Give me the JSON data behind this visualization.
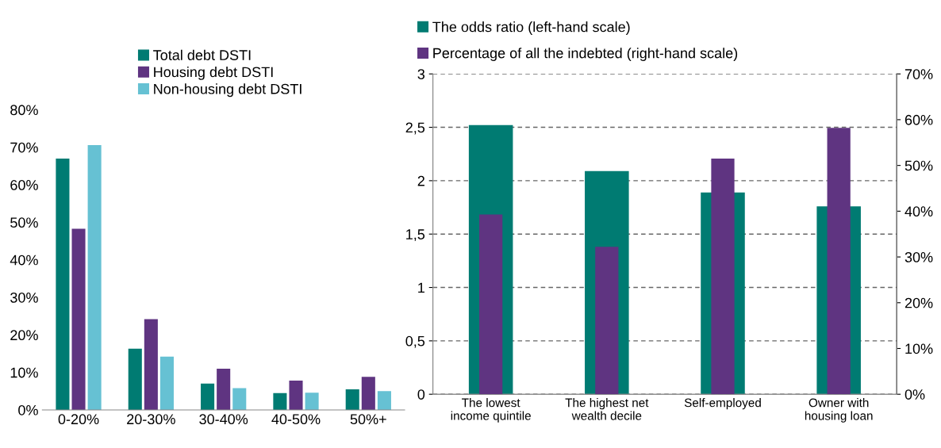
{
  "chart_data": [
    {
      "type": "bar",
      "categories": [
        "0-20%",
        "20-30%",
        "30-40%",
        "40-50%",
        "50%+"
      ],
      "series": [
        {
          "name": "Total debt DSTI",
          "color": "#007b72",
          "values": [
            67,
            16.3,
            7,
            4.5,
            5.5
          ]
        },
        {
          "name": "Housing debt DSTI",
          "color": "#5f3481",
          "values": [
            48.3,
            24.2,
            11,
            7.8,
            8.8
          ]
        },
        {
          "name": "Non-housing debt DSTI",
          "color": "#66c1d3",
          "values": [
            70.6,
            14.2,
            5.8,
            4.6,
            5
          ]
        }
      ],
      "ylim": [
        0,
        80
      ],
      "yticks": [
        {
          "value": 0,
          "label": "0%"
        },
        {
          "value": 10,
          "label": "10%"
        },
        {
          "value": 20,
          "label": "20%"
        },
        {
          "value": 30,
          "label": "30%"
        },
        {
          "value": 40,
          "label": "40%"
        },
        {
          "value": 50,
          "label": "50%"
        },
        {
          "value": 60,
          "label": "60%"
        },
        {
          "value": 70,
          "label": "70%"
        },
        {
          "value": 80,
          "label": "80%"
        }
      ],
      "grid": false,
      "legend": "top"
    },
    {
      "type": "bar",
      "categories": [
        "The lowest\nincome quintile",
        "The highest net\nwealth decile",
        "Self-employed",
        "Owner with\nhousing loan"
      ],
      "series": [
        {
          "name": "The odds ratio (left-hand scale)",
          "color": "#007b72",
          "values": [
            2.52,
            2.09,
            1.89,
            1.76
          ]
        },
        {
          "name": "Percentage of all the indebted (right-hand scale)",
          "color": "#5f3481",
          "values": [
            39.3,
            32.2,
            51.5,
            58.2
          ],
          "axis": "y2"
        }
      ],
      "ylim": [
        0,
        3
      ],
      "yticks": [
        0,
        {
          "value": 0.5,
          "label": "0,5"
        },
        1,
        {
          "value": 1.5,
          "label": "1,5"
        },
        2,
        {
          "value": 2.5,
          "label": "2,5"
        },
        3
      ],
      "y2lim": [
        0,
        70
      ],
      "y2ticks": [
        {
          "value": 0,
          "label": "0%"
        },
        {
          "value": 10,
          "label": "10%"
        },
        {
          "value": 20,
          "label": "20%"
        },
        {
          "value": 30,
          "label": "30%"
        },
        {
          "value": 40,
          "label": "40%"
        },
        {
          "value": 50,
          "label": "50%"
        },
        {
          "value": 60,
          "label": "60%"
        },
        {
          "value": 70,
          "label": "70%"
        }
      ],
      "grid": "y",
      "legend": "top"
    }
  ]
}
